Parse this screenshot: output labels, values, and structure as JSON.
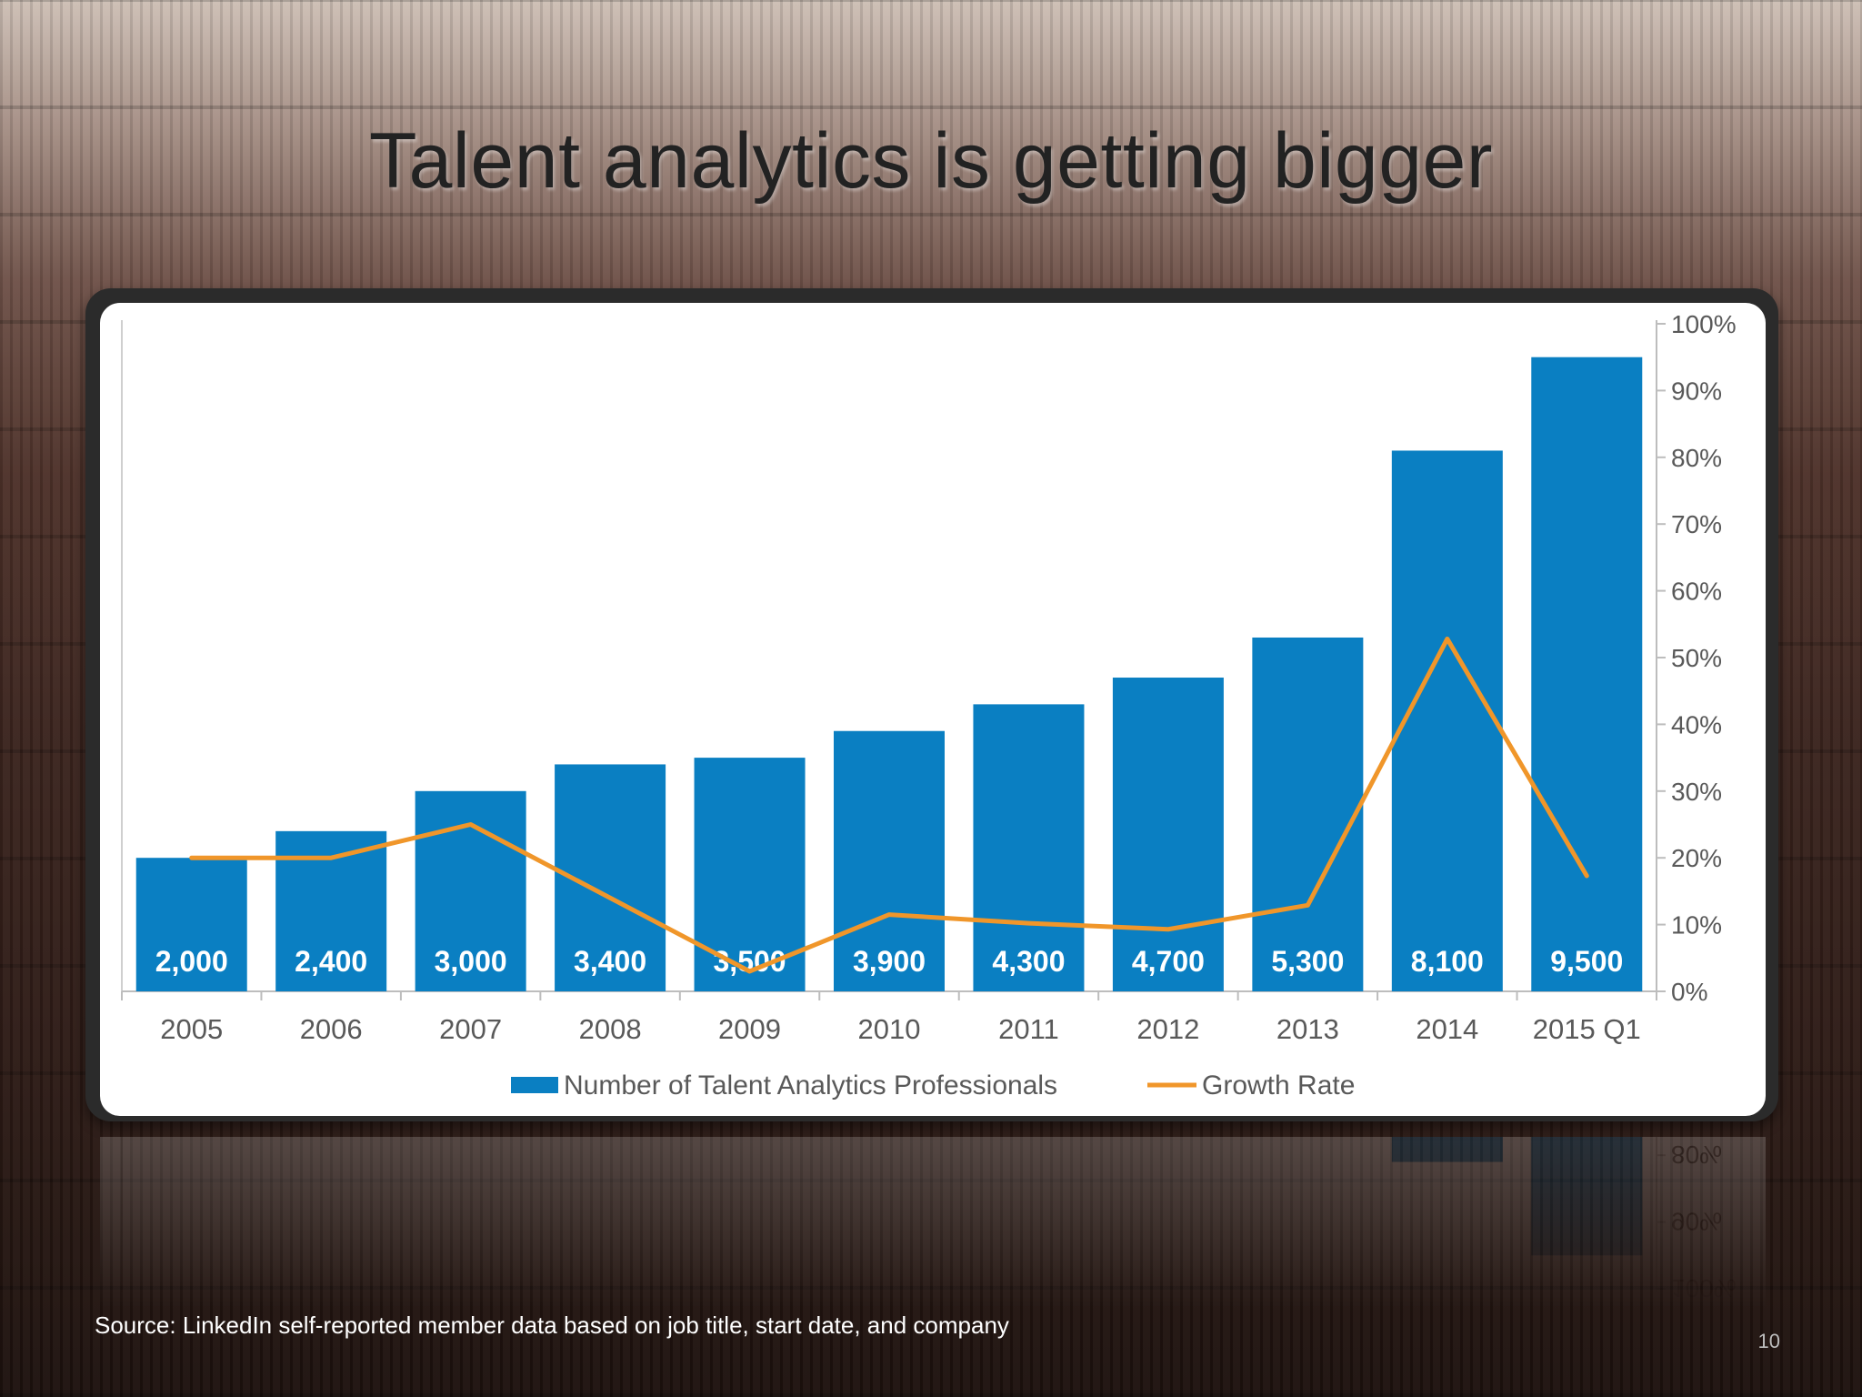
{
  "slide": {
    "title": "Talent analytics is getting bigger",
    "source": "Source: LinkedIn self-reported member data based on job title, start date, and company",
    "page_number": "10"
  },
  "chart_data": {
    "type": "bar",
    "categories": [
      "2005",
      "2006",
      "2007",
      "2008",
      "2009",
      "2010",
      "2011",
      "2012",
      "2013",
      "2014",
      "2015 Q1"
    ],
    "series": [
      {
        "name": "Number of Talent Analytics Professionals",
        "type": "bar",
        "color": "#0a7fc2",
        "values": [
          2000,
          2400,
          3000,
          3400,
          3500,
          3900,
          4300,
          4700,
          5300,
          8100,
          9500
        ],
        "labels": [
          "2,000",
          "2,400",
          "3,000",
          "3,400",
          "3,500",
          "3,900",
          "4,300",
          "4,700",
          "5,300",
          "8,100",
          "9,500"
        ]
      },
      {
        "name": "Growth Rate",
        "type": "line",
        "axis": "right",
        "color": "#f0962a",
        "values": [
          20,
          20,
          25,
          14,
          3,
          11.5,
          10.2,
          9.3,
          12.9,
          52.8,
          17.3
        ]
      }
    ],
    "y_left_range": [
      0,
      10000
    ],
    "y_right_range": [
      0,
      100
    ],
    "y_right_ticks": [
      "0%",
      "10%",
      "20%",
      "30%",
      "40%",
      "50%",
      "60%",
      "70%",
      "80%",
      "90%",
      "100%"
    ],
    "y_right_tick_values": [
      0,
      10,
      20,
      30,
      40,
      50,
      60,
      70,
      80,
      90,
      100
    ],
    "legend_position": "bottom",
    "grid": false
  }
}
